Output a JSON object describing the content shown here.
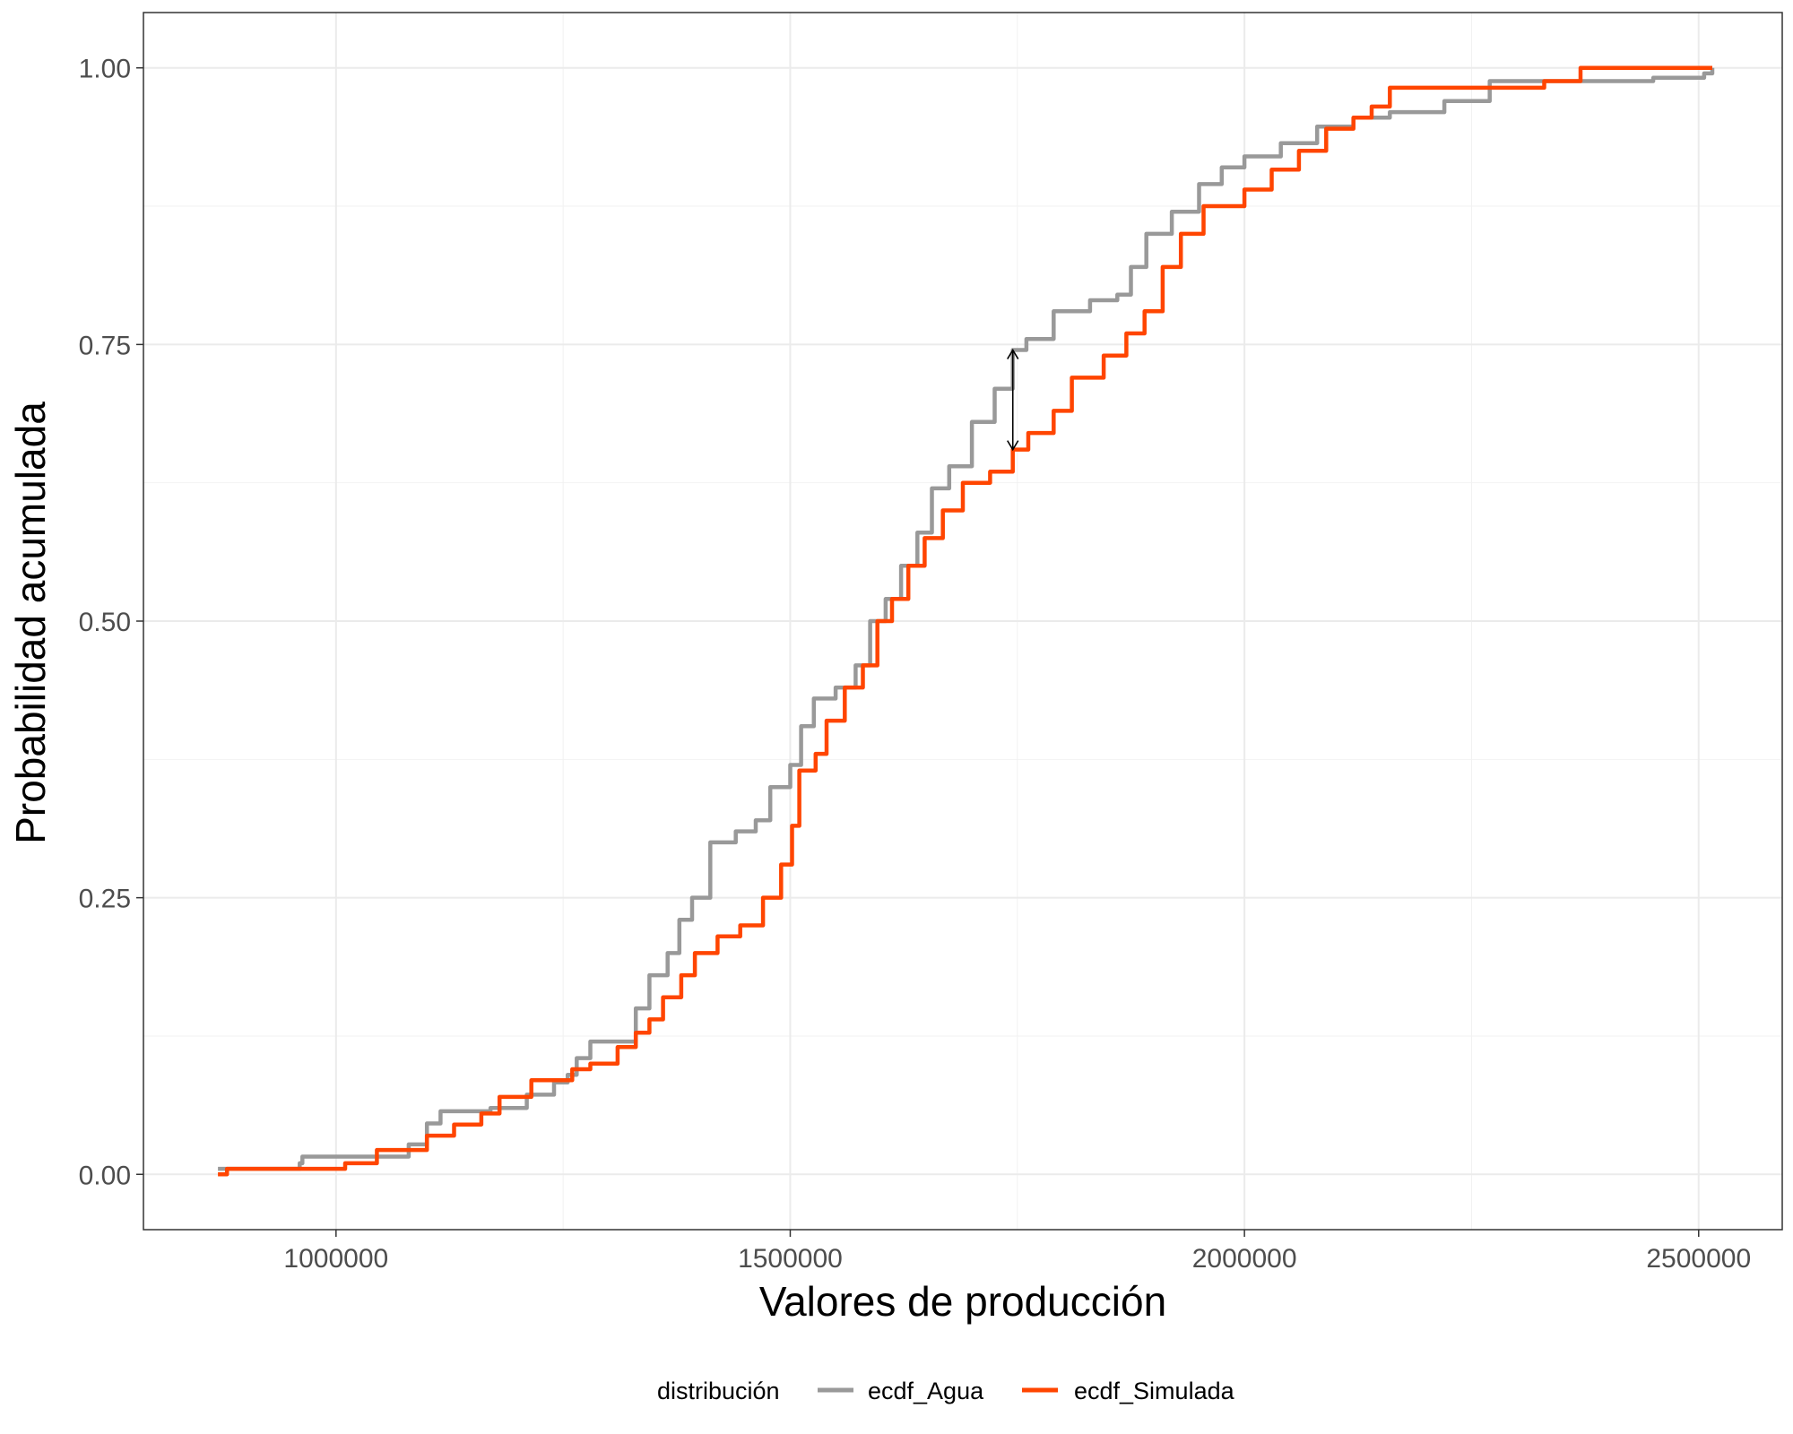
{
  "chart_data": {
    "type": "line",
    "title": "",
    "xlabel": "Valores de producción",
    "ylabel": "Probabilidad acumulada",
    "xlim": [
      788000,
      2592000
    ],
    "ylim": [
      -0.05,
      1.05
    ],
    "x_ticks": [
      1000000,
      1500000,
      2000000,
      2500000
    ],
    "x_tick_labels": [
      "1000000",
      "1500000",
      "2000000",
      "2500000"
    ],
    "y_ticks": [
      0,
      0.25,
      0.5,
      0.75,
      1
    ],
    "y_tick_labels": [
      "0.00",
      "0.25",
      "0.50",
      "0.75",
      "1.00"
    ],
    "grid": true,
    "legend": {
      "title": "distribución",
      "position": "bottom",
      "entries": [
        "ecdf_Agua",
        "ecdf_Simulada"
      ]
    },
    "series": [
      {
        "name": "ecdf_Agua",
        "color": "#999999",
        "points": [
          [
            870000,
            0.005
          ],
          [
            960000,
            0.01
          ],
          [
            963000,
            0.016
          ],
          [
            1050000,
            0.016
          ],
          [
            1080000,
            0.027
          ],
          [
            1100000,
            0.046
          ],
          [
            1115000,
            0.057
          ],
          [
            1170000,
            0.06
          ],
          [
            1210000,
            0.072
          ],
          [
            1240000,
            0.083
          ],
          [
            1255000,
            0.09
          ],
          [
            1265000,
            0.105
          ],
          [
            1280000,
            0.12
          ],
          [
            1318000,
            0.12
          ],
          [
            1330000,
            0.15
          ],
          [
            1345000,
            0.18
          ],
          [
            1365000,
            0.2
          ],
          [
            1378000,
            0.23
          ],
          [
            1392000,
            0.25
          ],
          [
            1412000,
            0.3
          ],
          [
            1440000,
            0.31
          ],
          [
            1462000,
            0.32
          ],
          [
            1478000,
            0.35
          ],
          [
            1500000,
            0.37
          ],
          [
            1512000,
            0.405
          ],
          [
            1526000,
            0.43
          ],
          [
            1550000,
            0.44
          ],
          [
            1572000,
            0.46
          ],
          [
            1588000,
            0.5
          ],
          [
            1605000,
            0.52
          ],
          [
            1622000,
            0.55
          ],
          [
            1640000,
            0.58
          ],
          [
            1656000,
            0.62
          ],
          [
            1675000,
            0.64
          ],
          [
            1700000,
            0.68
          ],
          [
            1725000,
            0.71
          ],
          [
            1745000,
            0.745
          ],
          [
            1760000,
            0.755
          ],
          [
            1790000,
            0.78
          ],
          [
            1830000,
            0.79
          ],
          [
            1860000,
            0.795
          ],
          [
            1875000,
            0.82
          ],
          [
            1892000,
            0.85
          ],
          [
            1920000,
            0.87
          ],
          [
            1950000,
            0.895
          ],
          [
            1975000,
            0.91
          ],
          [
            2000000,
            0.92
          ],
          [
            2040000,
            0.932
          ],
          [
            2080000,
            0.947
          ],
          [
            2120000,
            0.955
          ],
          [
            2160000,
            0.96
          ],
          [
            2220000,
            0.97
          ],
          [
            2270000,
            0.988
          ],
          [
            2320000,
            0.988
          ],
          [
            2450000,
            0.991
          ],
          [
            2506000,
            0.995
          ],
          [
            2515000,
            1.0
          ]
        ]
      },
      {
        "name": "ecdf_Simulada",
        "color": "#FF4500",
        "points": [
          [
            870000,
            0.0
          ],
          [
            880000,
            0.005
          ],
          [
            960000,
            0.005
          ],
          [
            1010000,
            0.01
          ],
          [
            1045000,
            0.022
          ],
          [
            1090000,
            0.022
          ],
          [
            1100000,
            0.035
          ],
          [
            1130000,
            0.045
          ],
          [
            1160000,
            0.055
          ],
          [
            1180000,
            0.07
          ],
          [
            1215000,
            0.085
          ],
          [
            1240000,
            0.085
          ],
          [
            1260000,
            0.095
          ],
          [
            1280000,
            0.1
          ],
          [
            1310000,
            0.115
          ],
          [
            1330000,
            0.128
          ],
          [
            1345000,
            0.14
          ],
          [
            1360000,
            0.16
          ],
          [
            1380000,
            0.18
          ],
          [
            1395000,
            0.2
          ],
          [
            1420000,
            0.215
          ],
          [
            1445000,
            0.225
          ],
          [
            1470000,
            0.25
          ],
          [
            1490000,
            0.28
          ],
          [
            1502000,
            0.315
          ],
          [
            1510000,
            0.365
          ],
          [
            1528000,
            0.38
          ],
          [
            1540000,
            0.41
          ],
          [
            1560000,
            0.44
          ],
          [
            1580000,
            0.46
          ],
          [
            1596000,
            0.5
          ],
          [
            1612000,
            0.52
          ],
          [
            1630000,
            0.55
          ],
          [
            1648000,
            0.575
          ],
          [
            1668000,
            0.6
          ],
          [
            1690000,
            0.625
          ],
          [
            1720000,
            0.635
          ],
          [
            1745000,
            0.655
          ],
          [
            1762000,
            0.67
          ],
          [
            1790000,
            0.69
          ],
          [
            1810000,
            0.72
          ],
          [
            1845000,
            0.74
          ],
          [
            1870000,
            0.76
          ],
          [
            1890000,
            0.78
          ],
          [
            1910000,
            0.82
          ],
          [
            1930000,
            0.85
          ],
          [
            1955000,
            0.875
          ],
          [
            2000000,
            0.89
          ],
          [
            2030000,
            0.908
          ],
          [
            2060000,
            0.925
          ],
          [
            2090000,
            0.945
          ],
          [
            2120000,
            0.955
          ],
          [
            2140000,
            0.965
          ],
          [
            2160000,
            0.982
          ],
          [
            2200000,
            0.982
          ],
          [
            2330000,
            0.988
          ],
          [
            2370000,
            1.0
          ],
          [
            2515000,
            1.0
          ]
        ]
      }
    ],
    "annotation": {
      "type": "double-arrow",
      "x": 1745000,
      "y_from": 0.655,
      "y_to": 0.745,
      "color": "#000000"
    }
  }
}
